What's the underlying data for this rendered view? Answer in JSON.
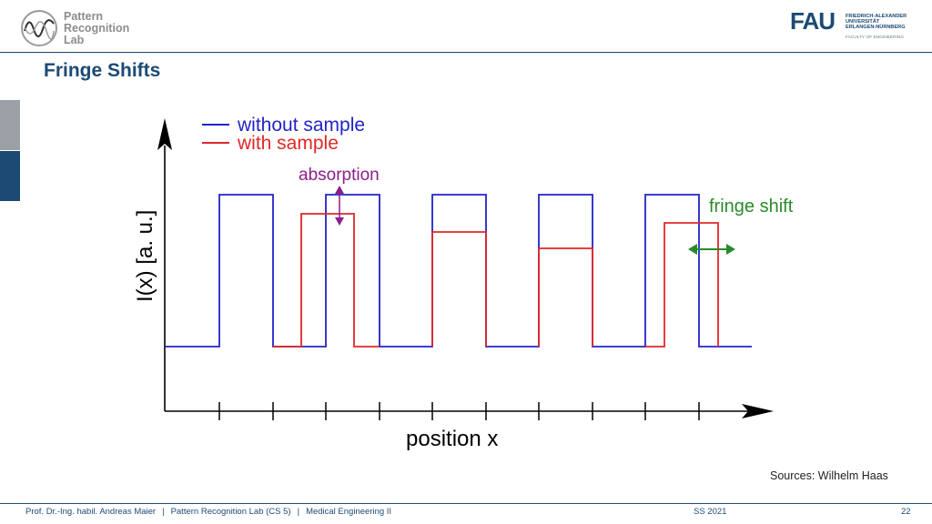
{
  "logo": {
    "line1": "Pattern",
    "line2": "Recognition",
    "line3": "Lab"
  },
  "fau": {
    "mark": "FAU",
    "line1": "FRIEDRICH-ALEXANDER",
    "line2": "UNIVERSITÄT",
    "line3": "ERLANGEN-NÜRNBERG",
    "faculty": "FACULTY OF ENGINEERING"
  },
  "slide": {
    "title": "Fringe Shifts"
  },
  "chart_data": {
    "type": "line",
    "title": "",
    "xlabel": "position x",
    "ylabel": "I(x) [a. u.]",
    "legend_position": "top-left",
    "grid": false,
    "series": [
      {
        "name": "without sample",
        "color": "#2323c8",
        "shape": "square wave, constant high level"
      },
      {
        "name": "with sample",
        "color": "#e02828",
        "shape": "square wave, shifted right, decreasing high level (absorption)"
      }
    ],
    "annotations": [
      {
        "text": "absorption",
        "color": "#8b1e8b"
      },
      {
        "text": "fringe shift",
        "color": "#2a8a2a"
      }
    ]
  },
  "sources": "Sources: Wilhelm Haas",
  "footer": {
    "author": "Prof. Dr.-Ing. habil. Andreas Maier",
    "lab": "Pattern Recognition Lab (CS 5)",
    "course": "Medical Engineering II",
    "separator": "|",
    "semester": "SS 2021",
    "page": "22"
  }
}
